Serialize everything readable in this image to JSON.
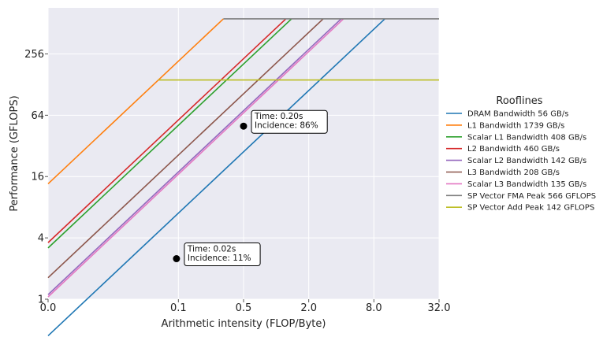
{
  "chart_data": {
    "type": "line",
    "title": "",
    "xlabel": "Arithmetic intensity (FLOP/Byte)",
    "ylabel": "Performance (GFLOPS)",
    "x_scale": "log2",
    "y_scale": "log2",
    "xlim": [
      0.0078125,
      32
    ],
    "ylim": [
      1,
      725
    ],
    "x_ticks": [
      {
        "value": 0.0078125,
        "label": "0.0"
      },
      {
        "value": 0.125,
        "label": "0.1"
      },
      {
        "value": 0.5,
        "label": "0.5"
      },
      {
        "value": 2,
        "label": "2.0"
      },
      {
        "value": 8,
        "label": "8.0"
      },
      {
        "value": 32,
        "label": "32.0"
      }
    ],
    "y_ticks": [
      {
        "value": 1,
        "label": "1"
      },
      {
        "value": 4,
        "label": "4"
      },
      {
        "value": 16,
        "label": "16"
      },
      {
        "value": 64,
        "label": "64"
      },
      {
        "value": 256,
        "label": "256"
      }
    ],
    "grid": true,
    "legend": {
      "title": "Rooflines",
      "placement": "right"
    },
    "series": [
      {
        "name": "DRAM Bandwidth 56 GB/s",
        "kind": "bandwidth",
        "value": 56,
        "color": "#1f77b4"
      },
      {
        "name": "L1 Bandwidth 1739 GB/s",
        "kind": "bandwidth",
        "value": 1739,
        "color": "#ff7f0e"
      },
      {
        "name": "Scalar L1 Bandwidth 408 GB/s",
        "kind": "bandwidth",
        "value": 408,
        "color": "#2ca02c"
      },
      {
        "name": "L2 Bandwidth 460 GB/s",
        "kind": "bandwidth",
        "value": 460,
        "color": "#d62728"
      },
      {
        "name": "Scalar L2 Bandwidth 142 GB/s",
        "kind": "bandwidth",
        "value": 142,
        "color": "#9467bd"
      },
      {
        "name": "L3 Bandwidth 208 GB/s",
        "kind": "bandwidth",
        "value": 208,
        "color": "#8c564b"
      },
      {
        "name": "Scalar L3 Bandwidth 135 GB/s",
        "kind": "bandwidth",
        "value": 135,
        "color": "#e377c2"
      },
      {
        "name": "SP Vector FMA Peak 566 GFLOPS",
        "kind": "peak",
        "value": 566,
        "color": "#7f7f7f"
      },
      {
        "name": "SP Vector Add Peak 142 GFLOPS",
        "kind": "peak",
        "value": 142,
        "color": "#bcbd22"
      }
    ],
    "points": [
      {
        "x": 0.12,
        "y": 2.5,
        "label": [
          "Time: 0.02s",
          "Incidence: 11%"
        ]
      },
      {
        "x": 0.5,
        "y": 50,
        "label": [
          "Time: 0.20s",
          "Incidence: 86%"
        ]
      }
    ]
  }
}
